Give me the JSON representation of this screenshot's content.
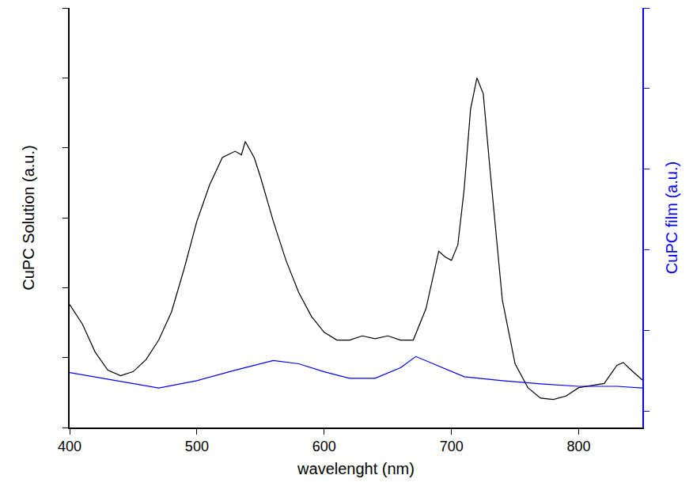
{
  "chart_data": {
    "type": "line",
    "xlabel": "wavelenght (nm)",
    "ylabel": "CuPC Solution (a.u.)",
    "y2label": "CuPC film (a.u.)",
    "xlim": [
      400,
      850
    ],
    "xticks": [
      400,
      500,
      600,
      700,
      800
    ],
    "ylim": [
      0,
      6
    ],
    "yticks": [
      0,
      1,
      2,
      3,
      4,
      5,
      6
    ],
    "y2lim": [
      -0.2,
      5
    ],
    "y2ticks": [
      0,
      1,
      2,
      3,
      4,
      5
    ],
    "tick_labels": "x",
    "grid": false,
    "series": [
      {
        "color": "#000000",
        "x": [
          400,
          410,
          420,
          430,
          440,
          450,
          460,
          470,
          480,
          490,
          500,
          510,
          520,
          530,
          535,
          538,
          545,
          550,
          560,
          570,
          580,
          590,
          600,
          610,
          620,
          630,
          640,
          650,
          660,
          670,
          680,
          690,
          695,
          700,
          705,
          710,
          715,
          720,
          725,
          730,
          740,
          750,
          760,
          770,
          780,
          790,
          800,
          810,
          820,
          830,
          835,
          840,
          850
        ],
        "values": [
          1.76,
          1.48,
          1.08,
          0.82,
          0.74,
          0.8,
          0.97,
          1.25,
          1.65,
          2.27,
          2.95,
          3.47,
          3.86,
          3.95,
          3.9,
          4.09,
          3.86,
          3.58,
          2.95,
          2.39,
          1.93,
          1.59,
          1.36,
          1.25,
          1.25,
          1.31,
          1.27,
          1.31,
          1.25,
          1.25,
          1.7,
          2.52,
          2.44,
          2.39,
          2.61,
          3.41,
          4.55,
          5.0,
          4.77,
          3.75,
          1.82,
          0.91,
          0.57,
          0.42,
          0.4,
          0.45,
          0.57,
          0.6,
          0.63,
          0.89,
          0.93,
          0.84,
          0.68
        ]
      },
      {
        "color": "#0000ff",
        "axis": "y2",
        "x": [
          400,
          450,
          470,
          500,
          530,
          560,
          580,
          600,
          620,
          640,
          660,
          672,
          690,
          710,
          740,
          770,
          800,
          830,
          850
        ],
        "values": [
          0.48,
          0.34,
          0.29,
          0.38,
          0.51,
          0.63,
          0.59,
          0.49,
          0.41,
          0.41,
          0.54,
          0.68,
          0.56,
          0.43,
          0.38,
          0.34,
          0.31,
          0.31,
          0.29
        ]
      }
    ]
  }
}
